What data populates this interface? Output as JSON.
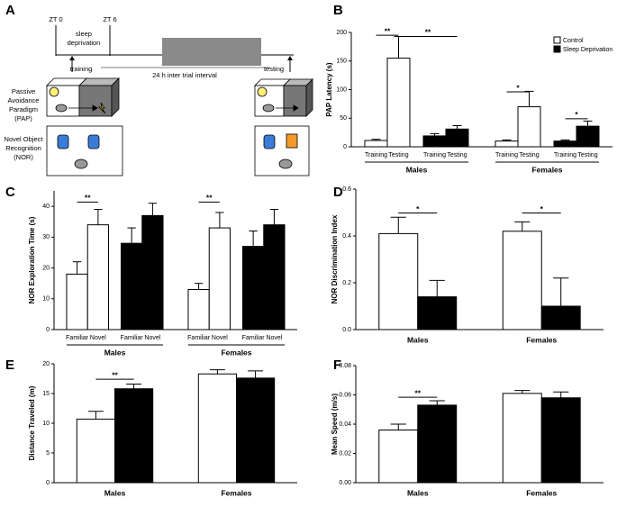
{
  "diagram": {
    "panel_label": "A",
    "timeline": {
      "start": "ZT 0",
      "end": "ZT 6",
      "sleep": [
        "sleep",
        "deprivation"
      ],
      "training": "training",
      "interval": "24 h inter trial interval",
      "testing": "testing"
    },
    "rows": [
      {
        "label": [
          "Passive",
          "Avoidance",
          "Paradigm",
          "(PAP)"
        ]
      },
      {
        "label": [
          "Novel Object",
          "Recognition",
          "(NOR)"
        ]
      }
    ]
  },
  "chart_data": [
    {
      "type": "bar",
      "panel_label": "B",
      "ylabel": "PAP Latency (s)",
      "categories": [
        "Males",
        "Females"
      ],
      "phases": [
        "Training",
        "Testing"
      ],
      "series": [
        {
          "name": "Control",
          "color": "#ffffff",
          "values": [
            [
              11,
              155
            ],
            [
              10,
              70
            ]
          ],
          "errors": [
            [
              2,
              38
            ],
            [
              2,
              27
            ]
          ]
        },
        {
          "name": "Sleep Deprivation",
          "color": "#000000",
          "values": [
            [
              19,
              31
            ],
            [
              10,
              36
            ]
          ],
          "errors": [
            [
              4,
              6
            ],
            [
              2,
              9
            ]
          ]
        }
      ],
      "ylim": [
        0,
        200
      ],
      "yticks": [
        0,
        50,
        100,
        150,
        200
      ],
      "grid": false,
      "legend": "top-right",
      "annotations": [
        "**",
        "**",
        "*",
        "*"
      ]
    },
    {
      "type": "bar",
      "panel_label": "C",
      "ylabel": "NOR Exploration Time (s)",
      "categories": [
        "Males",
        "Females"
      ],
      "phases": [
        "Familiar",
        "Novel"
      ],
      "series": [
        {
          "color": "#ffffff",
          "values": [
            [
              18,
              34
            ],
            [
              13,
              33
            ]
          ],
          "errors": [
            [
              4,
              5
            ],
            [
              2,
              5
            ]
          ]
        },
        {
          "color": "#000000",
          "values": [
            [
              28,
              37
            ],
            [
              27,
              34
            ]
          ],
          "errors": [
            [
              5,
              4
            ],
            [
              5,
              5
            ]
          ]
        }
      ],
      "ylim": [
        0,
        45
      ],
      "yticks": [
        0,
        10,
        20,
        30,
        40
      ],
      "grid": false,
      "annotations": [
        "**",
        "**"
      ]
    },
    {
      "type": "bar",
      "panel_label": "D",
      "ylabel": "NOR Discrimination Index",
      "categories": [
        "Males",
        "Females"
      ],
      "series": [
        {
          "color": "#ffffff",
          "values": [
            0.41,
            0.42
          ],
          "errors": [
            0.07,
            0.04
          ]
        },
        {
          "color": "#000000",
          "values": [
            0.14,
            0.1
          ],
          "errors": [
            0.07,
            0.12
          ]
        }
      ],
      "ylim": [
        0,
        0.6
      ],
      "yticks": [
        {
          "value": 0,
          "label": "0.0"
        },
        0.2,
        0.4,
        0.6
      ],
      "grid": false,
      "annotations": [
        "*",
        "*"
      ]
    },
    {
      "type": "bar",
      "panel_label": "E",
      "ylabel": "Distance Traveled (m)",
      "categories": [
        "Males",
        "Females"
      ],
      "series": [
        {
          "color": "#ffffff",
          "values": [
            10.7,
            18.3
          ],
          "errors": [
            1.3,
            0.7
          ]
        },
        {
          "color": "#000000",
          "values": [
            15.8,
            17.6
          ],
          "errors": [
            0.8,
            1.2
          ]
        }
      ],
      "ylim": [
        0,
        20
      ],
      "yticks": [
        0,
        5,
        10,
        15,
        20
      ],
      "grid": false,
      "annotations": [
        "**"
      ]
    },
    {
      "type": "bar",
      "panel_label": "F",
      "ylabel": "Mean Speed (m/s)",
      "categories": [
        "Males",
        "Females"
      ],
      "series": [
        {
          "color": "#ffffff",
          "values": [
            0.036,
            0.061
          ],
          "errors": [
            0.004,
            0.002
          ]
        },
        {
          "color": "#000000",
          "values": [
            0.053,
            0.058
          ],
          "errors": [
            0.003,
            0.004
          ]
        }
      ],
      "ylim": [
        0,
        0.08
      ],
      "yticks": [
        {
          "value": 0,
          "label": "0.00"
        },
        0.02,
        0.04,
        0.06,
        0.08
      ],
      "grid": false,
      "annotations": [
        "**"
      ]
    }
  ]
}
